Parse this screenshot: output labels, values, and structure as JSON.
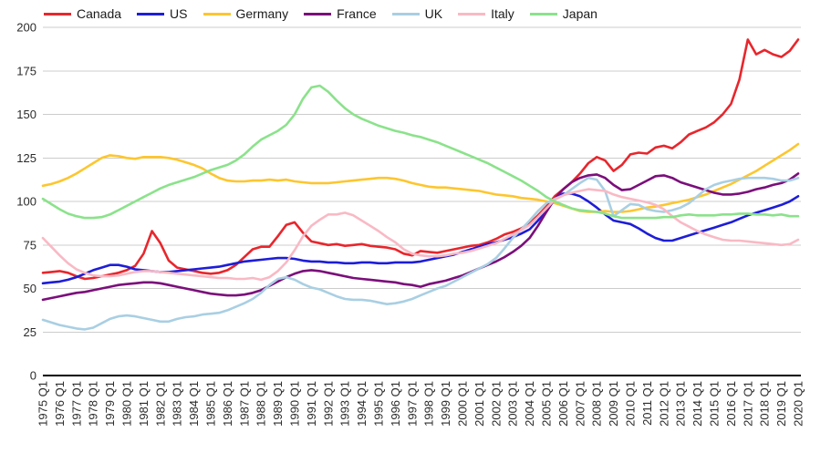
{
  "chart_data": {
    "type": "line",
    "title": "",
    "legend_position": "top",
    "grid": true,
    "grid_color": "#cccccc",
    "axis_color": "#000000",
    "text_color": "#2b2b2b",
    "x_axis": {
      "tick_labels": [
        "1975 Q1",
        "1976 Q1",
        "1977 Q1",
        "1978 Q1",
        "1979 Q1",
        "1980 Q1",
        "1981 Q1",
        "1982 Q1",
        "1983 Q1",
        "1984 Q1",
        "1985 Q1",
        "1986 Q1",
        "1987 Q1",
        "1988 Q1",
        "1989 Q1",
        "1990 Q1",
        "1991 Q1",
        "1992 Q1",
        "1993 Q1",
        "1994 Q1",
        "1995 Q1",
        "1996 Q1",
        "1997 Q1",
        "1998 Q1",
        "1999 Q1",
        "2000 Q1",
        "2001 Q1",
        "2002 Q1",
        "2003 Q1",
        "2004 Q1",
        "2005 Q1",
        "2006 Q1",
        "2007 Q1",
        "2008 Q1",
        "2009 Q1",
        "2010 Q1",
        "2011 Q1",
        "2012 Q1",
        "2013 Q1",
        "2014 Q1",
        "2015 Q1",
        "2016 Q1",
        "2017 Q1",
        "2018 Q1",
        "2019 Q1",
        "2020 Q1"
      ],
      "tick_years": [
        1975,
        1976,
        1977,
        1978,
        1979,
        1980,
        1981,
        1982,
        1983,
        1984,
        1985,
        1986,
        1987,
        1988,
        1989,
        1990,
        1991,
        1992,
        1993,
        1994,
        1995,
        1996,
        1997,
        1998,
        1999,
        2000,
        2001,
        2002,
        2003,
        2004,
        2005,
        2006,
        2007,
        2008,
        2009,
        2010,
        2011,
        2012,
        2013,
        2014,
        2015,
        2016,
        2017,
        2018,
        2019,
        2020
      ]
    },
    "y_axis": {
      "ticks": [
        0,
        25,
        50,
        75,
        100,
        125,
        150,
        175,
        200
      ],
      "min": 0,
      "max": 200
    },
    "series_x_start": 1975,
    "series_x_step": 0.5,
    "series": [
      {
        "name": "Canada",
        "color": "#e8262c",
        "values": [
          59,
          59.5,
          60,
          59,
          57,
          55.5,
          56,
          57,
          58,
          59,
          60.5,
          63,
          70,
          83,
          76,
          66,
          62,
          61,
          60,
          59,
          58.5,
          59,
          60.5,
          63.5,
          68,
          72.5,
          74,
          74,
          80,
          86.5,
          88,
          82,
          77,
          76,
          75,
          75.5,
          74.5,
          75,
          75.5,
          74.5,
          74,
          73.5,
          72.5,
          70,
          69,
          71.5,
          71,
          70.5,
          71.5,
          72.5,
          73.5,
          74.5,
          75,
          76.5,
          78.5,
          81,
          82.5,
          84.5,
          87.5,
          92,
          97,
          103,
          107,
          111,
          116,
          122,
          125.5,
          123.5,
          117.5,
          121,
          127,
          128,
          127.5,
          131,
          132,
          130.5,
          134,
          138.5,
          140.5,
          142.5,
          145.5,
          150,
          156,
          170,
          193,
          184.5,
          187,
          184.5,
          183,
          186.5,
          193
        ]
      },
      {
        "name": "US",
        "color": "#1d1dd8",
        "values": [
          53,
          53.5,
          54,
          55,
          56.5,
          58.5,
          60.5,
          62,
          63.5,
          63.5,
          62.5,
          61,
          60.5,
          60,
          59.5,
          59.5,
          60,
          60.5,
          61,
          61.5,
          62,
          62.5,
          63.5,
          64.5,
          65.5,
          66,
          66.5,
          67,
          67.5,
          67.5,
          67,
          66,
          65.5,
          65.5,
          65,
          65,
          64.5,
          64.5,
          65,
          65,
          64.5,
          64.5,
          65,
          65,
          65,
          65.5,
          66.5,
          67.5,
          68.5,
          69.5,
          71,
          72.5,
          74,
          75.5,
          76.5,
          78,
          79.5,
          81.5,
          84,
          89,
          95,
          101.5,
          104.5,
          104.5,
          103,
          100,
          96.5,
          92.5,
          89,
          88,
          87,
          84.5,
          81.5,
          79,
          77.5,
          77.5,
          79,
          80.5,
          82,
          83.5,
          85,
          86.5,
          88,
          90,
          92,
          93.5,
          95,
          96.5,
          98,
          100,
          103
        ]
      },
      {
        "name": "Germany",
        "color": "#fdc62f",
        "values": [
          109,
          110,
          111.5,
          113.5,
          116,
          119,
          122,
          125,
          126.5,
          126,
          125,
          124.5,
          125.5,
          125.5,
          125.5,
          125,
          124,
          122.5,
          121,
          119,
          116,
          113.5,
          112,
          111.5,
          111.5,
          112,
          112,
          112.5,
          112,
          112.5,
          111.5,
          111,
          110.5,
          110.5,
          110.5,
          111,
          111.5,
          112,
          112.5,
          113,
          113.5,
          113.5,
          113,
          112,
          110.5,
          109.5,
          108.5,
          108,
          108,
          107.5,
          107,
          106.5,
          106,
          105,
          104,
          103.5,
          103,
          102,
          101.5,
          101,
          100,
          99,
          97.5,
          96,
          94.5,
          94,
          94,
          94.5,
          94,
          94,
          94.5,
          95.5,
          96.5,
          97,
          98,
          99,
          100,
          101,
          102.5,
          104,
          106,
          108,
          110,
          112.5,
          115,
          117.5,
          120.5,
          123.5,
          126.5,
          129.5,
          133
        ]
      },
      {
        "name": "France",
        "color": "#7b0e7b",
        "values": [
          43.5,
          44.5,
          45.5,
          46.5,
          47.5,
          48,
          49,
          50,
          51,
          52,
          52.5,
          53,
          53.5,
          53.5,
          53,
          52,
          51,
          50,
          49,
          48,
          47,
          46.5,
          46,
          46,
          46.5,
          47.5,
          49,
          51.5,
          54,
          56.5,
          58.5,
          60,
          60.5,
          60,
          59,
          58,
          57,
          56,
          55.5,
          55,
          54.5,
          54,
          53.5,
          52.5,
          52,
          51,
          52.5,
          53.5,
          54.5,
          56,
          57.5,
          59.5,
          61.5,
          63.5,
          65.5,
          68,
          71,
          74.5,
          79,
          86,
          94,
          101.5,
          107,
          111,
          113.5,
          115,
          115.5,
          113.5,
          109.5,
          106.5,
          107,
          109.5,
          112,
          114.5,
          115,
          113.5,
          111,
          109.5,
          108,
          106.5,
          105,
          104,
          104,
          104.5,
          105.5,
          107,
          108,
          109.5,
          110.5,
          112.5,
          116
        ]
      },
      {
        "name": "UK",
        "color": "#a9cfe3",
        "values": [
          32,
          30.5,
          29,
          28,
          27,
          26.5,
          27.5,
          30,
          32.5,
          34,
          34.5,
          34,
          33,
          32,
          31,
          31,
          32.5,
          33.5,
          34,
          35,
          35.5,
          36,
          37.5,
          39.5,
          41.5,
          44,
          47.5,
          52,
          55.5,
          56.5,
          55,
          52.5,
          50.5,
          49.5,
          47.5,
          45.5,
          44,
          43.5,
          43.5,
          43,
          42,
          41,
          41.5,
          42.5,
          44,
          46,
          48,
          50,
          51.5,
          54,
          56.5,
          59,
          61.5,
          64,
          67.5,
          73,
          79,
          84,
          89,
          94.5,
          99,
          101.5,
          103.5,
          107,
          110.5,
          113.5,
          112.5,
          106,
          91.5,
          95,
          98.5,
          98,
          95.5,
          94.5,
          94,
          95,
          96.5,
          99,
          103,
          107,
          109.5,
          111,
          112,
          113,
          113.5,
          113.5,
          113.5,
          113,
          112,
          112,
          113.5
        ]
      },
      {
        "name": "Italy",
        "color": "#f9b9c4",
        "values": [
          79,
          74,
          69,
          64.5,
          61,
          59,
          57.5,
          57,
          57,
          57.5,
          58.5,
          59.5,
          60,
          60,
          59.5,
          59,
          58.5,
          58,
          57.5,
          57,
          56.5,
          56,
          56,
          55.5,
          55.5,
          56,
          55,
          56.5,
          60,
          65,
          72,
          80,
          86,
          89.5,
          92.5,
          92.5,
          93.5,
          92,
          89,
          86,
          83,
          79.5,
          76.5,
          72.5,
          70,
          69,
          68.5,
          68.5,
          69,
          70,
          70.5,
          71.5,
          73,
          74.5,
          76,
          78.5,
          81,
          83.5,
          86.5,
          91,
          96,
          101,
          103.5,
          105,
          106,
          107,
          106.5,
          106,
          104,
          102.5,
          101.5,
          100.5,
          99.5,
          98,
          95.5,
          91.5,
          88,
          85.5,
          83,
          81,
          79.5,
          78,
          77.5,
          77.5,
          77,
          76.5,
          76,
          75.5,
          75,
          75.5,
          78
        ]
      },
      {
        "name": "Japan",
        "color": "#8be28b",
        "values": [
          101.5,
          98.5,
          95.5,
          93,
          91.5,
          90.5,
          90.5,
          91,
          92.5,
          95,
          97.5,
          100,
          102.5,
          105,
          107.5,
          109.5,
          111,
          112.5,
          114,
          116,
          118,
          119.5,
          121,
          123.5,
          127,
          131.5,
          135.5,
          138,
          140.5,
          144,
          150,
          159,
          165.5,
          166.5,
          163,
          158,
          153.5,
          150,
          147.5,
          145.5,
          143.5,
          142,
          140.5,
          139.5,
          138,
          137,
          135.5,
          134,
          132,
          130,
          128,
          126,
          124,
          122,
          119.5,
          117,
          114.5,
          112,
          109,
          106,
          102.5,
          100,
          98,
          96,
          95,
          94.5,
          94,
          93,
          91.5,
          90.5,
          90.5,
          90.5,
          90.5,
          90.5,
          91,
          91,
          92,
          92.5,
          92,
          92,
          92,
          92.5,
          92.5,
          93,
          93,
          92.5,
          92.5,
          92,
          92.5,
          91.5,
          91.5
        ]
      }
    ]
  }
}
